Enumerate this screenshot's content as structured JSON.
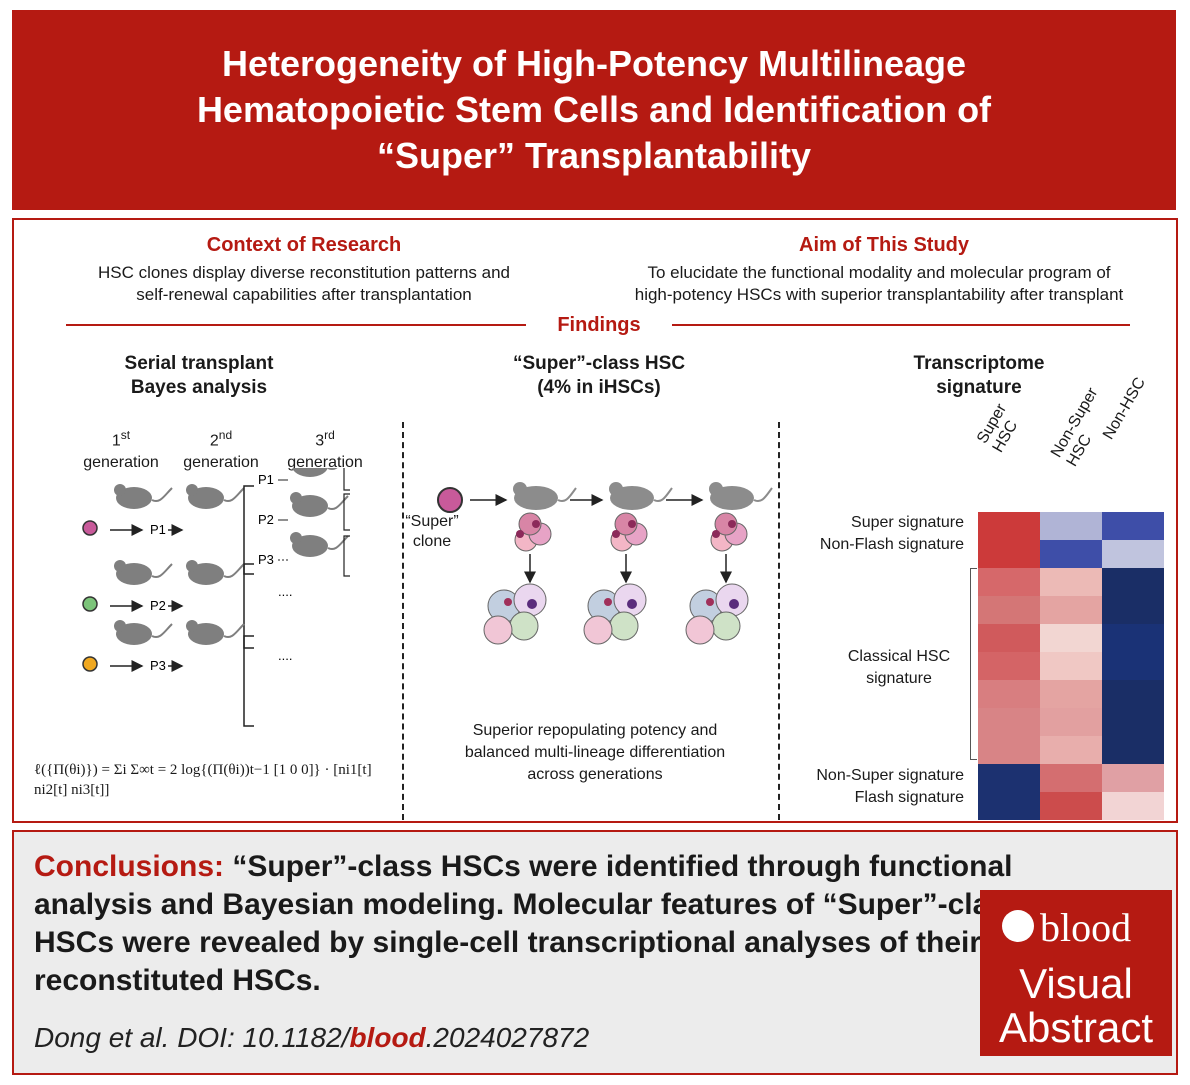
{
  "title": "Heterogeneity of High-Potency Multilineage\nHematopoietic Stem Cells and Identification of\n“Super” Transplantability",
  "context": {
    "heading": "Context of Research",
    "text": "HSC clones display diverse reconstitution patterns and\nself-renewal capabilities after transplantation"
  },
  "aim": {
    "heading": "Aim of This Study",
    "text": "To elucidate the functional modality and molecular program of\nhigh-potency HSCs with superior transplantability after transplant"
  },
  "findings_heading": "Findings",
  "left_column": {
    "heading": "Serial transplant\nBayes analysis",
    "generations": [
      {
        "num": "1",
        "sup": "st",
        "word": "generation"
      },
      {
        "num": "2",
        "sup": "nd",
        "word": "generation"
      },
      {
        "num": "3",
        "sup": "rd",
        "word": "generation"
      }
    ],
    "populations": [
      "P1",
      "P2",
      "P3"
    ],
    "ellipsis": "....",
    "clone_colors": [
      "#c85a9a",
      "#7cc47a",
      "#f0a820"
    ],
    "formula": "ℓ({Π(θi)}) = Σi Σ∞t = 2 log{(Π(θi))t−1 [1 0 0]} · [ni1[t] ni2[t] ni3[t]]"
  },
  "middle_column": {
    "heading": "“Super”-class HSC\n(4% in iHSCs)",
    "clone_label": "“Super”\nclone",
    "caption": "Superior repopulating potency and\nbalanced multi-lineage differentiation\nacross generations"
  },
  "right_column": {
    "heading": "Transcriptome\nsignature",
    "heatmap": {
      "columns": [
        "Super HSC",
        "Non-Super HSC",
        "Non-HSC"
      ],
      "row_labels": [
        "Super signature",
        "Non-Flash signature",
        "Classical HSC signature",
        "Non-Super signature",
        "Flash signature"
      ],
      "colors": [
        [
          "#cc3a3a",
          "#b0b4d6",
          "#3e4ea8"
        ],
        [
          "#cc3a3a",
          "#3e4ea8",
          "#c0c4de"
        ],
        [
          "#d6686a",
          "#ecbab6",
          "#1a2e66"
        ],
        [
          "#d47676",
          "#e4a4a2",
          "#1a2e66"
        ],
        [
          "#d05a5c",
          "#f2d6d2",
          "#1a3276"
        ],
        [
          "#d46466",
          "#f0c8c4",
          "#1a3276"
        ],
        [
          "#d87e80",
          "#e4a4a2",
          "#1a2e66"
        ],
        [
          "#d88486",
          "#e2a0a0",
          "#1a2e66"
        ],
        [
          "#d88486",
          "#e8aeac",
          "#1a2e66"
        ],
        [
          "#1c3170",
          "#d46e70",
          "#e0a0a4"
        ],
        [
          "#1c3170",
          "#cc4c4c",
          "#f2d4d4"
        ]
      ]
    }
  },
  "conclusions": {
    "label": "Conclusions:",
    "text": "“Super”-class HSCs were identified through functional analysis and Bayesian modeling. Molecular features of “Super”-class HSCs were revealed by single-cell transcriptional analyses of their reconstituted HSCs."
  },
  "citation": {
    "prefix": "Dong et al. DOI: 10.1182/",
    "journal": "blood",
    "suffix": ".2024027872"
  },
  "logo": {
    "word": "blood",
    "line2": "Visual",
    "line3": "Abstract"
  },
  "colors": {
    "brand_red": "#b51a12",
    "mouse_gray": "#7f7f7f"
  }
}
